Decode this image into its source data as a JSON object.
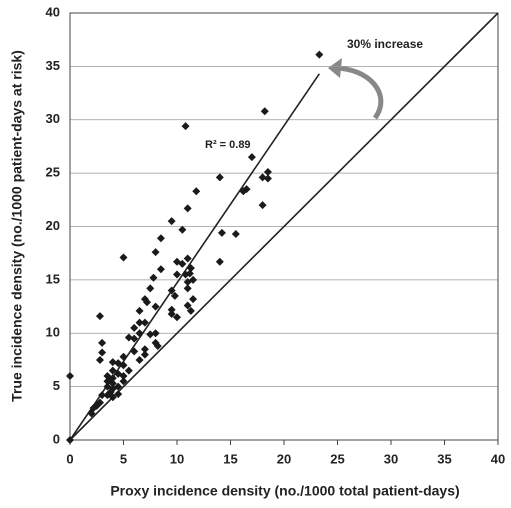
{
  "chart_data": {
    "type": "scatter",
    "x_label": "Proxy incidence density (no./1000 total patient-days)",
    "y_label": "True incidence density (no./1000 patient-days at risk)",
    "annotations": [
      "R² = 0.89",
      "30% increase"
    ],
    "xlim": [
      0,
      40
    ],
    "ylim": [
      0,
      40
    ],
    "xticks": [
      0,
      5,
      10,
      15,
      20,
      25,
      30,
      35,
      40
    ],
    "yticks": [
      0,
      5,
      10,
      15,
      20,
      25,
      30,
      35,
      40
    ],
    "grid": true,
    "color": "#1a1a1a",
    "reference_lines": [
      {
        "x": [
          0,
          40
        ],
        "y": [
          0,
          40
        ]
      },
      {
        "x": [
          0,
          23.3
        ],
        "y": [
          0,
          34.3
        ]
      }
    ],
    "x": [
      0,
      0,
      23.3,
      10.8,
      18.2,
      17,
      18,
      18.5,
      18.5,
      18,
      16.5,
      16.2,
      14,
      11.8,
      9.5,
      11,
      15.5,
      14.2,
      10.5,
      8.5,
      14,
      5,
      8,
      10,
      10.5,
      11,
      11.3,
      10,
      10.8,
      11.2,
      11,
      11,
      11.5,
      8.5,
      7.8,
      7.5,
      9.5,
      9.8,
      11.5,
      11,
      7,
      7.2,
      8,
      6.5,
      9.5,
      10,
      9.5,
      11.3,
      6.5,
      7,
      6,
      8,
      6.5,
      7.5,
      6,
      5.5,
      8,
      2.8,
      3,
      3,
      2.8,
      4,
      5,
      4.5,
      7,
      7,
      6,
      6.5,
      8.2,
      5,
      5.5,
      4,
      4.5,
      3.5,
      4,
      5,
      3.5,
      4,
      3.5,
      4.5,
      4,
      3.8,
      4.5,
      3.5,
      4,
      5,
      2.8,
      2.5,
      2.2,
      2,
      3,
      3.8
    ],
    "values": [
      6,
      0,
      36.1,
      29.4,
      30.8,
      26.5,
      24.6,
      24.5,
      25.1,
      22,
      23.5,
      23.3,
      24.6,
      23.3,
      20.5,
      21.7,
      19.3,
      19.4,
      19.7,
      18.9,
      16.7,
      17.1,
      17.6,
      16.7,
      16.5,
      17,
      16.1,
      15.5,
      15.5,
      15.6,
      14.8,
      14.2,
      15,
      16,
      15.2,
      14.2,
      14,
      13.5,
      13.2,
      12.6,
      13.2,
      12.9,
      12.5,
      12.1,
      12.2,
      11.5,
      11.8,
      12.1,
      11,
      11,
      10.5,
      10,
      10,
      9.9,
      9.5,
      9.6,
      9.1,
      11.6,
      9.1,
      8.2,
      7.5,
      7.3,
      7.8,
      7.2,
      8.5,
      8,
      8.3,
      7.5,
      8.8,
      7,
      6.5,
      6.5,
      6.2,
      6,
      5.8,
      6,
      5.5,
      5.3,
      5,
      5,
      4.8,
      4.5,
      4.3,
      4.2,
      4,
      5.5,
      3.5,
      3.2,
      3,
      2.5,
      4.2,
      5.6
    ]
  }
}
